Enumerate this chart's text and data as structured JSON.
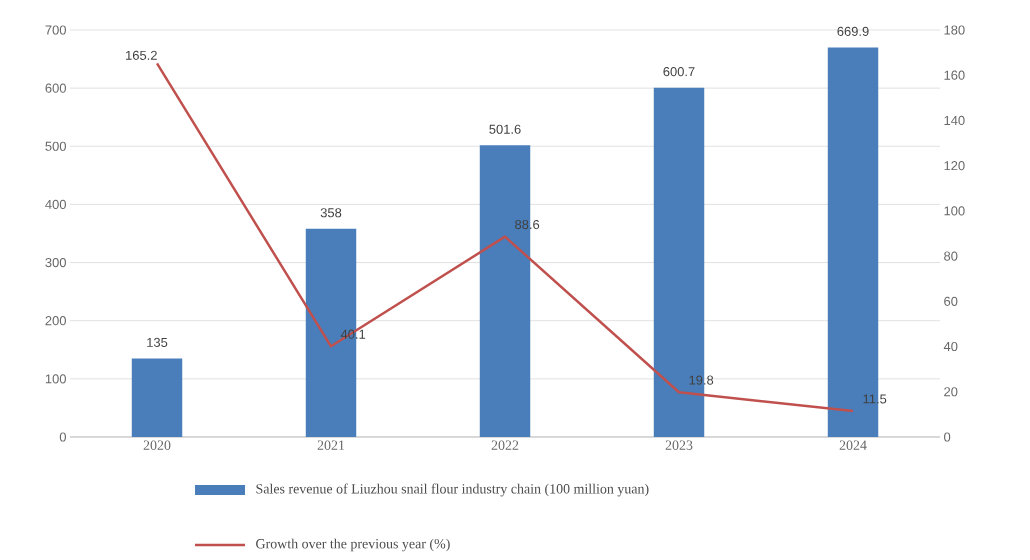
{
  "chart_data": {
    "type": "bar",
    "categories": [
      "2020",
      "2021",
      "2022",
      "2023",
      "2024"
    ],
    "series": [
      {
        "name": "Sales revenue of Liuzhou snail flour industry chain (100 million yuan)",
        "color": "#4a7ebb",
        "values": [
          135,
          358,
          501.6,
          600.7,
          669.9
        ]
      },
      {
        "name": "Growth over the previous year (%)",
        "type": "line",
        "axis": "y2",
        "color": "#c0504d",
        "values": [
          165.2,
          40.1,
          88.6,
          19.8,
          11.5
        ]
      }
    ],
    "ylim": [
      0,
      700
    ],
    "yticks": [
      0,
      100,
      200,
      300,
      400,
      500,
      600,
      700
    ],
    "y2lim": [
      0,
      180
    ],
    "y2ticks": [
      0,
      20,
      40,
      60,
      80,
      100,
      120,
      140,
      160,
      180
    ],
    "grid": "y",
    "legend": "bottom",
    "data_labels": true,
    "marker": "none"
  }
}
